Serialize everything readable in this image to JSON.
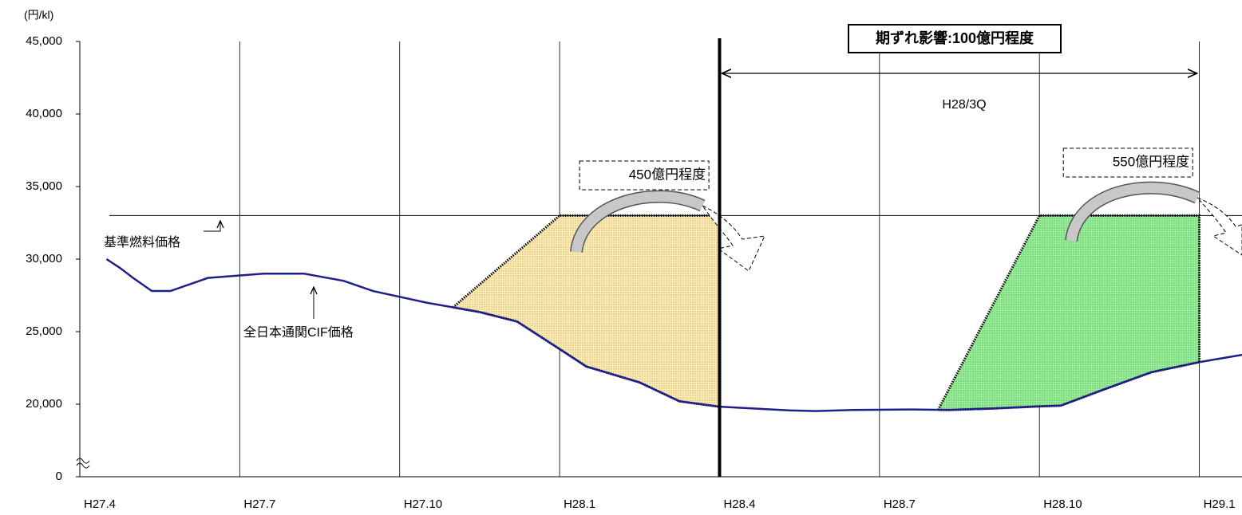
{
  "chart_data": {
    "type": "line",
    "unit_label": "(円/kl)",
    "xlim": [
      0,
      21.8
    ],
    "xticks": [
      {
        "value": 0,
        "label": "H27.4"
      },
      {
        "value": 3,
        "label": "H27.7"
      },
      {
        "value": 6,
        "label": "H27.10"
      },
      {
        "value": 9,
        "label": "H28.1"
      },
      {
        "value": 12,
        "label": "H28.4"
      },
      {
        "value": 15,
        "label": "H28.7"
      },
      {
        "value": 18,
        "label": "H28.10"
      },
      {
        "value": 21,
        "label": "H29.1"
      }
    ],
    "ylim": [
      0,
      45000
    ],
    "yticks": [
      {
        "value": 0,
        "label": "0"
      },
      {
        "value": 20000,
        "label": "20,000"
      },
      {
        "value": 25000,
        "label": "25,000"
      },
      {
        "value": 30000,
        "label": "30,000"
      },
      {
        "value": 35000,
        "label": "35,000"
      },
      {
        "value": 40000,
        "label": "40,000"
      },
      {
        "value": 45000,
        "label": "45,000"
      }
    ],
    "axis_break": true,
    "series": [
      {
        "name": "全日本通関CIF価格",
        "color": "#1f1f8a",
        "x": [
          0.5,
          0.75,
          1.0,
          1.35,
          1.7,
          2.4,
          3.45,
          4.2,
          4.95,
          5.5,
          6.5,
          7.5,
          8.2,
          9.0,
          9.5,
          10.5,
          11.25,
          12.0,
          13.3,
          13.8,
          14.5,
          15.6,
          16.3,
          17.1,
          18.0,
          18.4,
          19.2,
          20.1,
          21.0,
          21.8
        ],
        "values": [
          30000,
          29400,
          28700,
          27800,
          27800,
          28700,
          29000,
          29000,
          28500,
          27800,
          27000,
          26350,
          25700,
          23800,
          22600,
          21500,
          20200,
          19300,
          18300,
          18100,
          18400,
          18550,
          18400,
          18800,
          19400,
          19600,
          21000,
          22200,
          22900,
          23400
        ]
      }
    ],
    "reference": {
      "label": "基準燃料価格",
      "value": 33000
    },
    "divider_x": 12,
    "period": {
      "label": "期ずれ影響:100億円程度",
      "sublabel": "H28/3Q",
      "x": [
        12,
        21
      ]
    },
    "regions": [
      {
        "label": "450億円程度",
        "color": "#ffd966",
        "x": [
          7.0,
          9.0,
          12.0
        ]
      },
      {
        "label": "550億円程度",
        "color": "#33dd33",
        "x": [
          16.1,
          18.0,
          21.0
        ]
      }
    ]
  }
}
